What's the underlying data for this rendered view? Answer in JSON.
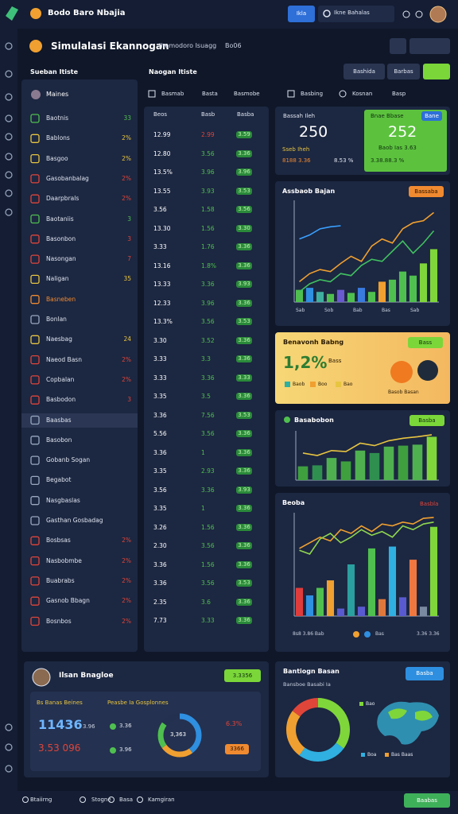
{
  "topbar": {
    "brand": "Bodo Baro Nbajia",
    "button": "Ikla",
    "search": "Ikne Bahalas"
  },
  "header": {
    "title": "Simulalasi Ekannogan",
    "subtitle": "Ihemodoro Isuagg",
    "tag": "Bo06"
  },
  "toolbar": {
    "buttons": [
      "Bashida",
      "Barbas"
    ]
  },
  "left": {
    "title": "Sueban Itiste",
    "user": "Maines",
    "selected": 15,
    "items": [
      {
        "label": "Baotnis",
        "value": "33",
        "color": "#4fc04f"
      },
      {
        "label": "Bablons",
        "value": "2%",
        "color": "#e8c540"
      },
      {
        "label": "Basgoo",
        "value": "2%",
        "color": "#e8c540"
      },
      {
        "label": "Gasobanbalag",
        "value": "2%",
        "color": "#e0453a"
      },
      {
        "label": "Daarpbrals",
        "value": "2%",
        "color": "#e0453a"
      },
      {
        "label": "Baotaniis",
        "value": "3",
        "color": "#4fc04f"
      },
      {
        "label": "Basonbon",
        "value": "3",
        "color": "#e0453a"
      },
      {
        "label": "Nasongan",
        "value": "7",
        "color": "#e0453a"
      },
      {
        "label": "Naligan",
        "value": "35",
        "color": "#e8c540"
      },
      {
        "label": "Basneben",
        "color": "#f08a30"
      },
      {
        "label": "Bonlan",
        "color": "#dfe5f0"
      },
      {
        "label": "Naesbag",
        "value": "24",
        "color": "#e8c540"
      },
      {
        "label": "Naeod Basn",
        "value": "2%",
        "color": "#e0453a"
      },
      {
        "label": "Copbalan",
        "value": "2%",
        "color": "#e0453a"
      },
      {
        "label": "Basbodon",
        "value": "3",
        "color": "#e0453a"
      },
      {
        "label": "Baasbas",
        "color": "#dfe5f0"
      },
      {
        "label": "Basobon",
        "color": "#dfe5f0"
      },
      {
        "label": "Gobanb Sogan",
        "color": "#dfe5f0"
      },
      {
        "label": "Begabot",
        "color": "#dfe5f0"
      },
      {
        "label": "Nasgbaslas",
        "color": "#dfe5f0"
      },
      {
        "label": "Gasthan Gosbadag",
        "color": "#dfe5f0"
      },
      {
        "label": "Bosbsas",
        "value": "2%",
        "color": "#e0453a"
      },
      {
        "label": "Nasbobmbe",
        "value": "2%",
        "color": "#e0453a"
      },
      {
        "label": "Buabrabs",
        "value": "2%",
        "color": "#e0453a"
      },
      {
        "label": "Gasnob Bbagn",
        "value": "2%",
        "color": "#e0453a"
      },
      {
        "label": "Bosnbos",
        "value": "2%",
        "color": "#e0453a"
      }
    ]
  },
  "table": {
    "title": "Naogan Itiste",
    "tabs": [
      "Basmab",
      "Basta",
      "Basmobe"
    ],
    "columns": [
      "Beos",
      "Basb",
      "Basba"
    ],
    "rows": [
      {
        "cells": [
          "12.99",
          "2.99",
          "3.59"
        ],
        "color": "#e0453a"
      },
      {
        "cells": [
          "12.80",
          "3.56",
          "3.36"
        ],
        "color": "#4fc04f"
      },
      {
        "cells": [
          "13.5%",
          "3.96",
          "3.96"
        ],
        "color": "#4fc04f"
      },
      {
        "cells": [
          "13.55",
          "3.93",
          "3.53"
        ],
        "color": "#4fc04f"
      },
      {
        "cells": [
          "3.56",
          "1.58",
          "3.56"
        ],
        "color": "#4fc04f"
      },
      {
        "cells": [
          "13.30",
          "1.56",
          "3.30"
        ],
        "color": "#4fc04f"
      },
      {
        "cells": [
          "3.33",
          "1.76",
          "3.36"
        ],
        "color": "#4fc04f"
      },
      {
        "cells": [
          "13.16",
          "1.8%",
          "3.36"
        ],
        "color": "#4fc04f"
      },
      {
        "cells": [
          "13.33",
          "3.36",
          "3.93"
        ],
        "color": "#4fc04f"
      },
      {
        "cells": [
          "12.33",
          "3.96",
          "3.36"
        ],
        "color": "#4fc04f"
      },
      {
        "cells": [
          "13.3%",
          "3.56",
          "3.53"
        ],
        "color": "#4fc04f"
      },
      {
        "cells": [
          "3.30",
          "3.52",
          "3.36"
        ],
        "color": "#4fc04f"
      },
      {
        "cells": [
          "3.33",
          "3.3",
          "3.36"
        ],
        "color": "#4fc04f"
      },
      {
        "cells": [
          "3.33",
          "3.36",
          "3.33"
        ],
        "color": "#4fc04f"
      },
      {
        "cells": [
          "3.35",
          "3.5",
          "3.36"
        ],
        "color": "#4fc04f"
      },
      {
        "cells": [
          "3.36",
          "7.56",
          "3.53"
        ],
        "color": "#4fc04f"
      },
      {
        "cells": [
          "5.56",
          "3.56",
          "3.36"
        ],
        "color": "#4fc04f"
      },
      {
        "cells": [
          "3.36",
          "1",
          "3.36"
        ],
        "color": "#4fc04f"
      },
      {
        "cells": [
          "3.35",
          "2.93",
          "3.36"
        ],
        "color": "#4fc04f"
      },
      {
        "cells": [
          "3.56",
          "3.36",
          "3.93"
        ],
        "color": "#4fc04f"
      },
      {
        "cells": [
          "3.35",
          "1",
          "3.36"
        ],
        "color": "#4fc04f"
      },
      {
        "cells": [
          "3.26",
          "1.56",
          "3.36"
        ],
        "color": "#4fc04f"
      },
      {
        "cells": [
          "2.30",
          "3.56",
          "3.36"
        ],
        "color": "#4fc04f"
      },
      {
        "cells": [
          "3.36",
          "1.56",
          "3.36"
        ],
        "color": "#4fc04f"
      },
      {
        "cells": [
          "3.36",
          "3.56",
          "3.53"
        ],
        "color": "#4fc04f"
      },
      {
        "cells": [
          "2.35",
          "3.6",
          "3.36"
        ],
        "color": "#4fc04f"
      },
      {
        "cells": [
          "7.73",
          "3.33",
          "3.36"
        ],
        "color": "#4fc04f"
      }
    ]
  },
  "right_tabs": [
    "Basbing",
    "Kosnan",
    "Basp"
  ],
  "stats": {
    "left": {
      "label": "Bassah Ileh",
      "value": "250",
      "caption": "Sseb Iheh",
      "foot": [
        "8188 3.36",
        "8.53 %"
      ]
    },
    "right": {
      "label": "Bnae Bbase",
      "badge": "Bane",
      "value": "252",
      "caption": "Baob Ias 3.63",
      "foot": "3.38.88.3 %"
    }
  },
  "charts": [
    {
      "title": "Assbaob Bajan",
      "badge": "Bassaba",
      "ylim": [
        0,
        100
      ],
      "bars": {
        "values": [
          12,
          14,
          10,
          8,
          12,
          9,
          14,
          10,
          20,
          22,
          30,
          26,
          38,
          52
        ],
        "colors": [
          "#4fc04f",
          "#2f8fe0",
          "#3fb0a0",
          "#4fc04f",
          "#6a5ad0",
          "#4fc04f",
          "#3a7be0",
          "#4fc04f",
          "#f0a030",
          "#4fc04f",
          "#4fc04f",
          "#4fc04f",
          "#7fd63a",
          "#7fd63a"
        ]
      },
      "lines": [
        {
          "color": "#3aa0ff",
          "values": [
            62,
            66,
            72,
            74,
            75,
            null,
            null,
            null,
            null,
            null,
            null,
            null,
            null,
            null
          ]
        },
        {
          "color": "#f0a030",
          "values": [
            20,
            28,
            32,
            30,
            38,
            45,
            40,
            55,
            62,
            58,
            72,
            78,
            80,
            88
          ]
        },
        {
          "color": "#40c060",
          "values": [
            10,
            18,
            22,
            20,
            28,
            26,
            36,
            42,
            40,
            50,
            60,
            48,
            58,
            70
          ]
        }
      ],
      "foot": [
        "Sab",
        "Sob",
        "Bab",
        "Bas",
        "Sab"
      ]
    },
    {
      "title": "Basabobon",
      "badge": "Basba",
      "ylim": [
        0,
        100
      ],
      "bars": {
        "values": [
          28,
          30,
          45,
          38,
          60,
          55,
          68,
          70,
          72,
          88
        ],
        "colors": [
          "#3f9f3f",
          "#2f8f4f",
          "#4fb04f",
          "#3f9f3f",
          "#4fb04f",
          "#2f8f4f",
          "#4fb04f",
          "#3f9f3f",
          "#4fb04f",
          "#7fd63a"
        ]
      },
      "lines": [
        {
          "color": "#e8c540",
          "values": [
            55,
            50,
            60,
            58,
            75,
            70,
            80,
            85,
            88,
            92
          ]
        }
      ]
    },
    {
      "title": "Beoba",
      "badge": "Basbla",
      "ylim": [
        0,
        110
      ],
      "bars": {
        "values": [
          30,
          22,
          30,
          38,
          8,
          55,
          10,
          72,
          18,
          74,
          20,
          60,
          10,
          95
        ],
        "colors": [
          "#e03c3c",
          "#2f8fe0",
          "#4fc04f",
          "#f0a030",
          "#5a5ad0",
          "#2aa0a0",
          "#5a5ad0",
          "#4fc04f",
          "#e0783c",
          "#2fb0e0",
          "#5a5ad0",
          "#f07840",
          "#7a8aa0",
          "#7fd63a"
        ]
      },
      "lines": [
        {
          "color": "#f0a030",
          "values": [
            72,
            78,
            84,
            80,
            92,
            88,
            96,
            90,
            98,
            96,
            100,
            98,
            104,
            105
          ]
        },
        {
          "color": "#8fd64f",
          "values": [
            70,
            66,
            82,
            88,
            78,
            84,
            92,
            86,
            90,
            84,
            96,
            92,
            98,
            100
          ]
        }
      ],
      "foot": [
        "8s8 3.86 Bab",
        "Bas",
        "3.36 3.36"
      ]
    }
  ],
  "promo": {
    "title": "Benavonh Babng",
    "badge": "Bass",
    "value": "1,2%",
    "small": "Bass",
    "legend": [
      "Baob",
      "Boo",
      "Bao"
    ],
    "caption": "Basob Basan"
  },
  "profile": {
    "name": "Ilsan Bnagloe",
    "badge": "3.3356",
    "heading": "Bs Banas Beines",
    "subheading": "Peasbe Ia Gosplonnes",
    "big": "11436",
    "big_unit": "3.96",
    "second": "3.53 096",
    "legend": [
      "3.36",
      "3.96"
    ],
    "donut_label": "3,363",
    "donut": {
      "values": [
        40,
        25,
        20,
        15
      ],
      "colors": [
        "#2f8fe0",
        "#f0a030",
        "#4fc04f",
        "#23304f"
      ]
    },
    "right": "6.3%",
    "pill": "3366"
  },
  "region": {
    "title": "Bantiogn Basan",
    "subtitle": "Bansboe Basabi Ia",
    "badge": "Basba",
    "legend": [
      "Bao",
      "Boa",
      "Bas Baas"
    ],
    "donut": {
      "values": [
        35,
        25,
        25,
        15
      ],
      "colors": [
        "#7fd63a",
        "#2fb0e0",
        "#f0a030",
        "#e0453a"
      ]
    }
  },
  "footer": {
    "items": [
      "Btaiirng",
      "Stogne",
      "Basa",
      "Kamgiran"
    ],
    "button": "Baabas"
  }
}
